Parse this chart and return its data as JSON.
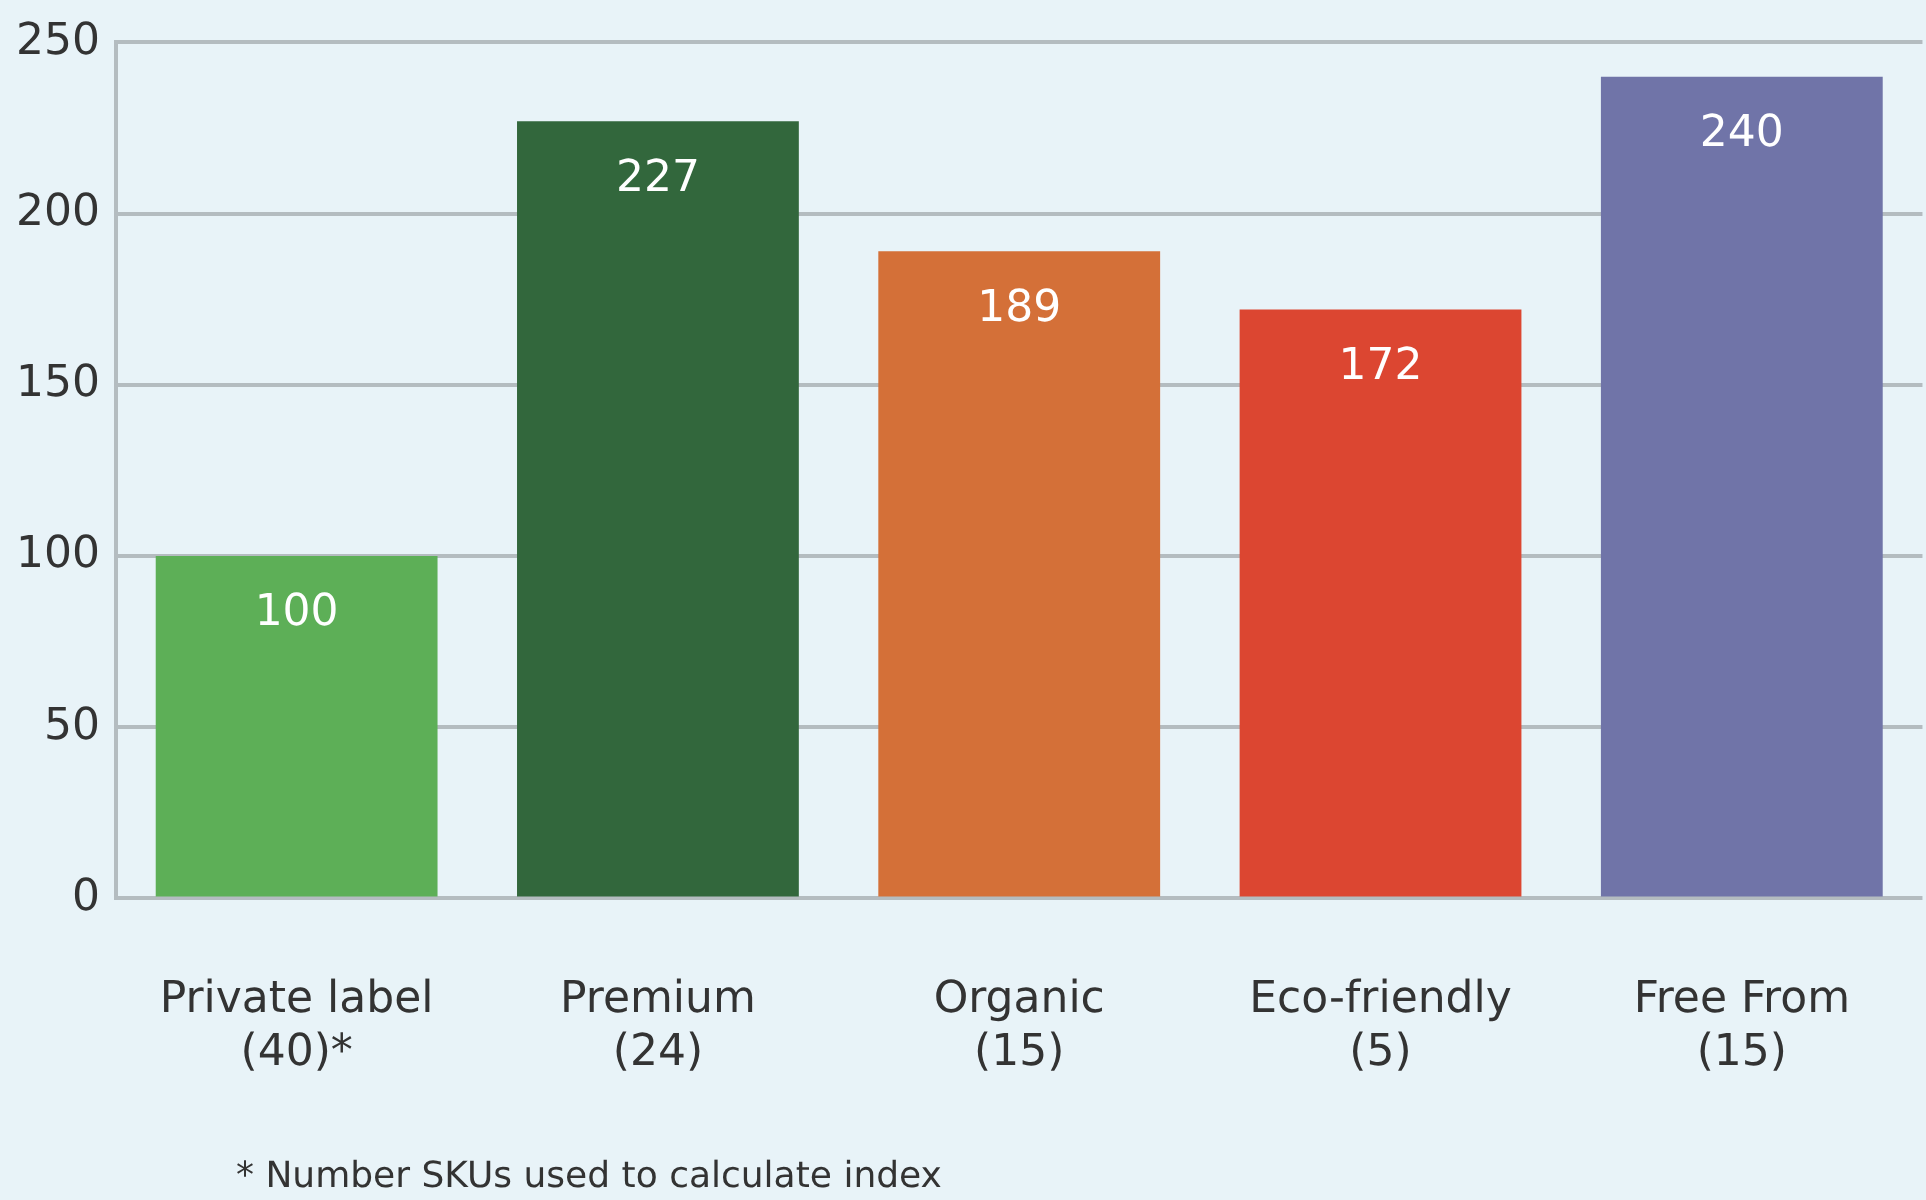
{
  "chart_data": {
    "type": "bar",
    "categories": [
      "Private label\n(40)*",
      "Premium\n(24)",
      "Organic\n(15)",
      "Eco-friendly\n(5)",
      "Free From\n(15)"
    ],
    "values": [
      100,
      227,
      189,
      172,
      240
    ],
    "colors": [
      "#5daf57",
      "#32673c",
      "#d47038",
      "#dc4631",
      "#7074a8"
    ],
    "ylim": [
      0,
      250
    ],
    "yticks": [
      0,
      50,
      100,
      150,
      200,
      250
    ],
    "grid": "y",
    "data_labels": true,
    "legend": false,
    "annotations": [
      "* Number SKUs used to calculate index"
    ]
  }
}
